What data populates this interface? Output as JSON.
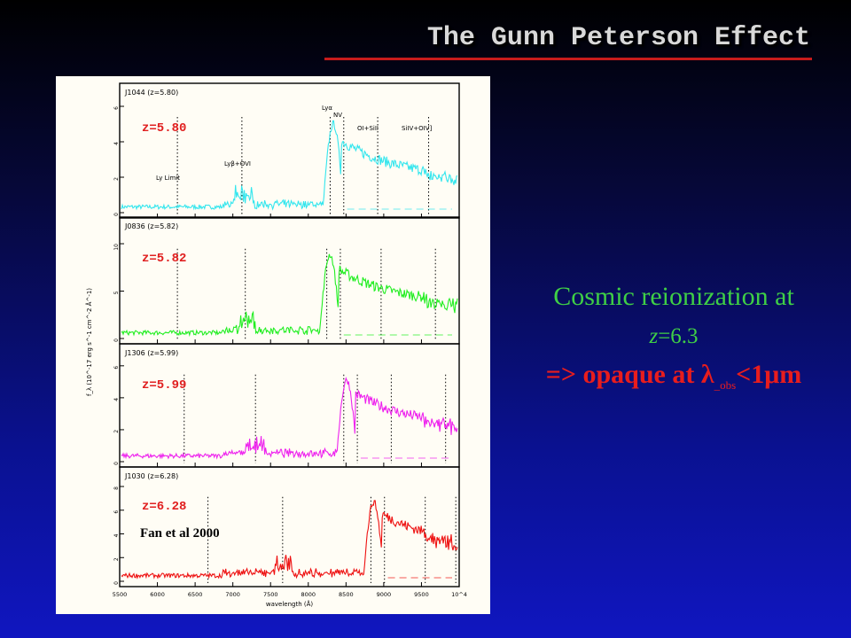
{
  "slide": {
    "title": "The Gunn Peterson Effect",
    "text_line1": "Cosmic  reionization  at",
    "text_line2_z": "z",
    "text_line2_value": "=6.3",
    "text_line3_prefix": "=> opaque at ",
    "text_line3_lambda": "λ",
    "text_line3_sub": "_obs",
    "text_line3_suffix": "<1μm"
  },
  "colors": {
    "title": "#d9d9d9",
    "rule": "#c71b1b",
    "green_text": "#3fcf46",
    "red_text": "#e81d1d"
  },
  "figure": {
    "credit": "Fan et al 2000",
    "xlabel": "wavelength (Å)",
    "ylabel": "f_λ (10^-17 erg s^-1 cm^-2 Å^-1)",
    "x_ticks": [
      "5500",
      "6000",
      "6500",
      "7000",
      "7500",
      "8000",
      "8500",
      "9000",
      "9500",
      "10^4"
    ],
    "panels": [
      {
        "name": "J1044 (z=5.80)",
        "z_label": "z=5.80",
        "color": "#33e6ee",
        "y_ticks": [
          "0",
          "2",
          "4",
          "6"
        ],
        "lines": [
          {
            "label": "Ly Limit"
          },
          {
            "label": "Lyβ+OVI"
          },
          {
            "label": "Lyα"
          },
          {
            "label": "NV"
          },
          {
            "label": "OI+SiII"
          },
          {
            "label": "SiIV+OIV]"
          }
        ]
      },
      {
        "name": "J0836 (z=5.82)",
        "z_label": "z=5.82",
        "color": "#22ee22",
        "y_ticks": [
          "0",
          "5",
          "10"
        ]
      },
      {
        "name": "J1306 (z=5.99)",
        "z_label": "z=5.99",
        "color": "#ee22ee",
        "y_ticks": [
          "0",
          "2",
          "4",
          "6"
        ]
      },
      {
        "name": "J1030 (z=6.28)",
        "z_label": "z=6.28",
        "color": "#ee1111",
        "y_ticks": [
          "0",
          "2",
          "4",
          "6",
          "8"
        ]
      }
    ]
  }
}
